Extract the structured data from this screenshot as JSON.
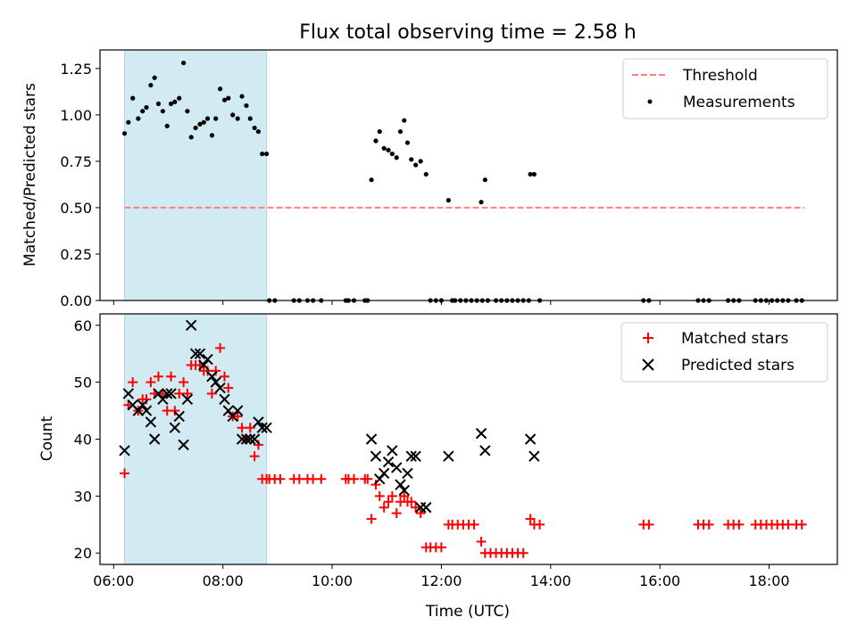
{
  "title": "Flux total observing time = 2.58 h",
  "colors": {
    "threshold": "#ff7f7f",
    "measurements": "#000000",
    "matched": "#ff0000",
    "predicted": "#000000",
    "span": "#add8e6"
  },
  "chart_data": [
    {
      "type": "scatter",
      "ylabel": "Matched/Predicted stars",
      "xlabel": "",
      "xlim": [
        5.75,
        19.25
      ],
      "ylim": [
        0,
        1.35
      ],
      "yticks": [
        0,
        0.25,
        0.5,
        0.75,
        1.0,
        1.25
      ],
      "ytick_labels": [
        "0.00",
        "0.25",
        "0.50",
        "0.75",
        "1.00",
        "1.25"
      ],
      "xticks": [
        6,
        8,
        10,
        12,
        14,
        16,
        18
      ],
      "shaded_span": [
        6.2,
        8.8
      ],
      "legend_position": "upper-right",
      "legend": [
        "Threshold",
        "Measurements"
      ],
      "threshold": {
        "name": "Threshold",
        "y": 0.5,
        "x": [
          6.2,
          18.65
        ]
      },
      "measurements": {
        "name": "Measurements",
        "x": [
          6.2,
          6.27,
          6.35,
          6.45,
          6.53,
          6.6,
          6.68,
          6.75,
          6.82,
          6.9,
          6.98,
          7.05,
          7.12,
          7.2,
          7.28,
          7.35,
          7.42,
          7.5,
          7.58,
          7.65,
          7.72,
          7.8,
          7.87,
          7.95,
          8.03,
          8.1,
          8.18,
          8.27,
          8.35,
          8.43,
          8.5,
          8.58,
          8.65,
          8.72,
          8.8,
          10.72,
          10.8,
          10.87,
          10.95,
          11.03,
          11.1,
          11.18,
          11.25,
          11.32,
          11.38,
          11.45,
          11.53,
          11.62,
          11.72,
          12.13,
          12.73,
          12.8,
          13.63,
          13.7
        ],
        "y": [
          0.9,
          0.96,
          1.09,
          0.98,
          1.02,
          1.04,
          1.16,
          1.2,
          1.06,
          1.02,
          0.94,
          1.06,
          1.07,
          1.09,
          1.28,
          1.02,
          0.88,
          0.93,
          0.95,
          0.96,
          0.98,
          0.89,
          0.98,
          1.14,
          1.08,
          1.09,
          1.0,
          0.98,
          1.1,
          1.05,
          0.98,
          0.93,
          0.91,
          0.79,
          0.79,
          0.65,
          0.86,
          0.91,
          0.82,
          0.81,
          0.79,
          0.77,
          0.91,
          0.97,
          0.85,
          0.76,
          0.73,
          0.75,
          0.68,
          0.54,
          0.53,
          0.65,
          0.68,
          0.68
        ]
      },
      "zero_points_x": [
        8.85,
        8.95,
        9.3,
        9.4,
        9.55,
        9.65,
        9.8,
        10.25,
        10.3,
        10.4,
        10.6,
        10.65,
        11.8,
        11.9,
        12.0,
        12.2,
        12.25,
        12.35,
        12.45,
        12.55,
        12.65,
        12.75,
        12.85,
        13.0,
        13.1,
        13.2,
        13.3,
        13.4,
        13.5,
        13.6,
        13.8,
        15.7,
        15.8,
        16.7,
        16.8,
        16.9,
        17.25,
        17.35,
        17.45,
        17.75,
        17.85,
        17.95,
        18.05,
        18.15,
        18.25,
        18.35,
        18.5,
        18.6
      ],
      "zero_points_y": 0
    },
    {
      "type": "scatter",
      "ylabel": "Count",
      "xlabel": "Time (UTC)",
      "xlim": [
        5.75,
        19.25
      ],
      "ylim": [
        18,
        62
      ],
      "yticks": [
        20,
        30,
        40,
        50,
        60
      ],
      "ytick_labels": [
        "20",
        "30",
        "40",
        "50",
        "60"
      ],
      "xticks": [
        6,
        8,
        10,
        12,
        14,
        16,
        18
      ],
      "xtick_labels": [
        "06:00",
        "08:00",
        "10:00",
        "12:00",
        "14:00",
        "16:00",
        "18:00"
      ],
      "shaded_span": [
        6.2,
        8.8
      ],
      "legend_position": "upper-right",
      "legend": [
        "Matched stars",
        "Predicted stars"
      ],
      "matched": {
        "name": "Matched stars",
        "x": [
          6.2,
          6.27,
          6.35,
          6.45,
          6.53,
          6.6,
          6.68,
          6.75,
          6.82,
          6.9,
          6.98,
          7.05,
          7.12,
          7.2,
          7.28,
          7.35,
          7.42,
          7.5,
          7.58,
          7.65,
          7.72,
          7.8,
          7.87,
          7.95,
          8.03,
          8.1,
          8.18,
          8.27,
          8.35,
          8.43,
          8.5,
          8.58,
          8.65,
          8.72,
          8.8,
          8.85,
          8.95,
          9.05,
          9.3,
          9.4,
          9.55,
          9.65,
          9.8,
          10.25,
          10.3,
          10.4,
          10.6,
          10.65,
          10.72,
          10.8,
          10.87,
          10.95,
          11.03,
          11.1,
          11.18,
          11.25,
          11.32,
          11.38,
          11.45,
          11.53,
          11.62,
          11.72,
          11.8,
          11.9,
          12.0,
          12.13,
          12.2,
          12.3,
          12.4,
          12.5,
          12.6,
          12.73,
          12.8,
          12.9,
          13.0,
          13.1,
          13.2,
          13.3,
          13.4,
          13.5,
          13.63,
          13.7,
          13.8,
          15.7,
          15.8,
          16.7,
          16.8,
          16.9,
          17.25,
          17.35,
          17.45,
          17.75,
          17.85,
          17.95,
          18.05,
          18.15,
          18.25,
          18.35,
          18.5,
          18.6
        ],
        "y": [
          34,
          46,
          50,
          45,
          47,
          47,
          50,
          48,
          51,
          48,
          45,
          51,
          45,
          48,
          50,
          48,
          53,
          53,
          53,
          52,
          52,
          48,
          52,
          56,
          51,
          49,
          44,
          44,
          42,
          40,
          42,
          37,
          39,
          33,
          33,
          33,
          33,
          33,
          33,
          33,
          33,
          33,
          33,
          33,
          33,
          33,
          33,
          33,
          26,
          32,
          30,
          28,
          29,
          30,
          27,
          29,
          30,
          29,
          29,
          28,
          27,
          21,
          21,
          21,
          21,
          25,
          25,
          25,
          25,
          25,
          25,
          22,
          20,
          20,
          20,
          20,
          20,
          20,
          20,
          20,
          26,
          25,
          25,
          25,
          25,
          25,
          25,
          25,
          25,
          25,
          25,
          25,
          25,
          25,
          25,
          25,
          25,
          25,
          25,
          25
        ]
      },
      "predicted": {
        "name": "Predicted stars",
        "x": [
          6.2,
          6.27,
          6.35,
          6.45,
          6.53,
          6.6,
          6.68,
          6.75,
          6.82,
          6.9,
          6.98,
          7.05,
          7.12,
          7.2,
          7.28,
          7.35,
          7.42,
          7.5,
          7.58,
          7.65,
          7.72,
          7.8,
          7.87,
          7.95,
          8.03,
          8.1,
          8.18,
          8.27,
          8.35,
          8.43,
          8.5,
          8.58,
          8.65,
          8.72,
          8.8,
          10.72,
          10.8,
          10.87,
          10.95,
          11.03,
          11.1,
          11.18,
          11.25,
          11.32,
          11.38,
          11.45,
          11.53,
          11.62,
          11.72,
          12.13,
          12.73,
          12.8,
          13.63,
          13.7
        ],
        "y": [
          38,
          48,
          46,
          45,
          46,
          45,
          43,
          40,
          48,
          47,
          48,
          48,
          42,
          44,
          39,
          47,
          60,
          55,
          55,
          53,
          54,
          51,
          50,
          49,
          47,
          45,
          44,
          45,
          40,
          40,
          40,
          40,
          43,
          42,
          42,
          40,
          37,
          33,
          34,
          36,
          38,
          35,
          32,
          31,
          34,
          37,
          37,
          28,
          28,
          37,
          41,
          38,
          40,
          37
        ]
      }
    }
  ]
}
